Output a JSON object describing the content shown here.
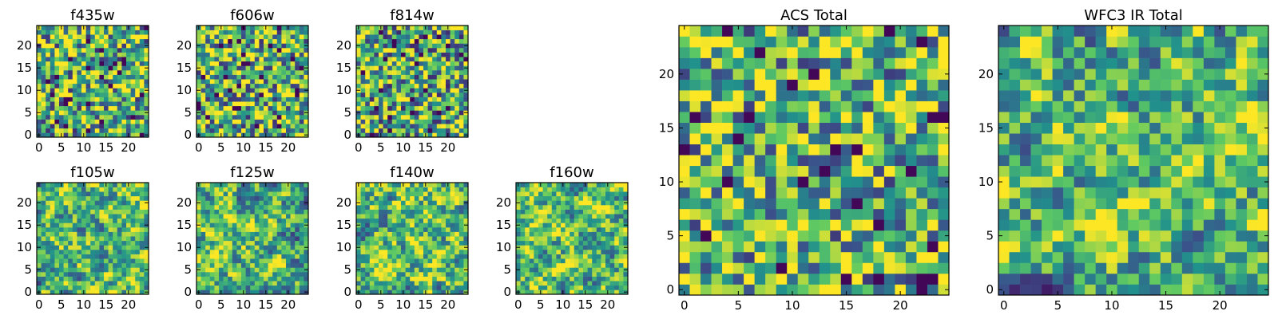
{
  "chart_data": [
    {
      "type": "heatmap",
      "title": "f435w",
      "xticks": [
        "0",
        "5",
        "10",
        "15",
        "20"
      ],
      "yticks": [
        "0",
        "5",
        "10",
        "15",
        "20"
      ],
      "xlim": [
        -0.5,
        24.5
      ],
      "ylim": [
        -0.5,
        24.5
      ],
      "grid_size": 25,
      "mean_level": 0.62,
      "smoothness": 0,
      "seed": 11
    },
    {
      "type": "heatmap",
      "title": "f606w",
      "xticks": [
        "0",
        "5",
        "10",
        "15",
        "20"
      ],
      "yticks": [
        "0",
        "5",
        "10",
        "15",
        "20"
      ],
      "xlim": [
        -0.5,
        24.5
      ],
      "ylim": [
        -0.5,
        24.5
      ],
      "grid_size": 25,
      "mean_level": 0.64,
      "smoothness": 0,
      "seed": 23
    },
    {
      "type": "heatmap",
      "title": "f814w",
      "xticks": [
        "0",
        "5",
        "10",
        "15",
        "20"
      ],
      "yticks": [
        "0",
        "5",
        "10",
        "15",
        "20"
      ],
      "xlim": [
        -0.5,
        24.5
      ],
      "ylim": [
        -0.5,
        24.5
      ],
      "grid_size": 25,
      "mean_level": 0.6,
      "smoothness": 0,
      "seed": 37
    },
    {
      "type": "heatmap",
      "title": "f105w",
      "xticks": [
        "0",
        "5",
        "10",
        "15",
        "20"
      ],
      "yticks": [
        "0",
        "5",
        "10",
        "15",
        "20"
      ],
      "xlim": [
        -0.5,
        24.5
      ],
      "ylim": [
        -0.5,
        24.5
      ],
      "grid_size": 25,
      "mean_level": 0.66,
      "smoothness": 1,
      "seed": 41
    },
    {
      "type": "heatmap",
      "title": "f125w",
      "xticks": [
        "0",
        "5",
        "10",
        "15",
        "20"
      ],
      "yticks": [
        "0",
        "5",
        "10",
        "15",
        "20"
      ],
      "xlim": [
        -0.5,
        24.5
      ],
      "ylim": [
        -0.5,
        24.5
      ],
      "grid_size": 25,
      "mean_level": 0.66,
      "smoothness": 1,
      "seed": 53
    },
    {
      "type": "heatmap",
      "title": "f140w",
      "xticks": [
        "0",
        "5",
        "10",
        "15",
        "20"
      ],
      "yticks": [
        "0",
        "5",
        "10",
        "15",
        "20"
      ],
      "xlim": [
        -0.5,
        24.5
      ],
      "ylim": [
        -0.5,
        24.5
      ],
      "grid_size": 25,
      "mean_level": 0.7,
      "smoothness": 1,
      "seed": 67
    },
    {
      "type": "heatmap",
      "title": "f160w",
      "xticks": [
        "0",
        "5",
        "10",
        "15",
        "20"
      ],
      "yticks": [
        "0",
        "5",
        "10",
        "15",
        "20"
      ],
      "xlim": [
        -0.5,
        24.5
      ],
      "ylim": [
        -0.5,
        24.5
      ],
      "grid_size": 25,
      "mean_level": 0.68,
      "smoothness": 1,
      "seed": 71
    },
    {
      "type": "heatmap",
      "title": "ACS Total",
      "xticks": [
        "0",
        "5",
        "10",
        "15",
        "20"
      ],
      "yticks": [
        "0",
        "5",
        "10",
        "15",
        "20"
      ],
      "xlim": [
        -0.5,
        24.5
      ],
      "ylim": [
        -0.5,
        24.5
      ],
      "grid_size": 25,
      "mean_level": 0.66,
      "smoothness": 0,
      "seed": 83
    },
    {
      "type": "heatmap",
      "title": "WFC3 IR Total",
      "xticks": [
        "0",
        "5",
        "10",
        "15",
        "20"
      ],
      "yticks": [
        "0",
        "5",
        "10",
        "15",
        "20"
      ],
      "xlim": [
        -0.5,
        24.5
      ],
      "ylim": [
        -0.5,
        24.5
      ],
      "grid_size": 25,
      "mean_level": 0.64,
      "smoothness": 1,
      "seed": 97
    }
  ],
  "colormap": [
    "#440154",
    "#3b528b",
    "#21918c",
    "#5ec962",
    "#fde725"
  ]
}
